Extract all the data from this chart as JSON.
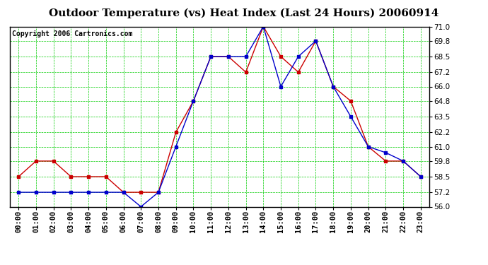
{
  "title": "Outdoor Temperature (vs) Heat Index (Last 24 Hours) 20060914",
  "copyright": "Copyright 2006 Cartronics.com",
  "hours": [
    "00:00",
    "01:00",
    "02:00",
    "03:00",
    "04:00",
    "05:00",
    "06:00",
    "07:00",
    "08:00",
    "09:00",
    "10:00",
    "11:00",
    "12:00",
    "13:00",
    "14:00",
    "15:00",
    "16:00",
    "17:00",
    "18:00",
    "19:00",
    "20:00",
    "21:00",
    "22:00",
    "23:00"
  ],
  "temp": [
    58.5,
    59.8,
    59.8,
    58.5,
    58.5,
    58.5,
    57.2,
    57.2,
    57.2,
    62.2,
    64.8,
    68.5,
    68.5,
    67.2,
    71.0,
    68.5,
    67.2,
    69.8,
    66.0,
    64.8,
    61.0,
    59.8,
    59.8,
    58.5
  ],
  "heat_index": [
    57.2,
    57.2,
    57.2,
    57.2,
    57.2,
    57.2,
    57.2,
    56.0,
    57.2,
    61.0,
    64.8,
    68.5,
    68.5,
    68.5,
    71.0,
    66.0,
    68.5,
    69.8,
    66.0,
    63.5,
    61.0,
    60.5,
    59.8,
    58.5
  ],
  "temp_color": "#CC0000",
  "heat_index_color": "#0000CC",
  "ylim_min": 56.0,
  "ylim_max": 71.0,
  "yticks": [
    56.0,
    57.2,
    58.5,
    59.8,
    61.0,
    62.2,
    63.5,
    64.8,
    66.0,
    67.2,
    68.5,
    69.8,
    71.0
  ],
  "bg_color": "#ffffff",
  "plot_bg_color": "#ffffff",
  "grid_color": "#00CC00",
  "title_fontsize": 11,
  "copyright_fontsize": 7,
  "tick_fontsize": 7.5
}
